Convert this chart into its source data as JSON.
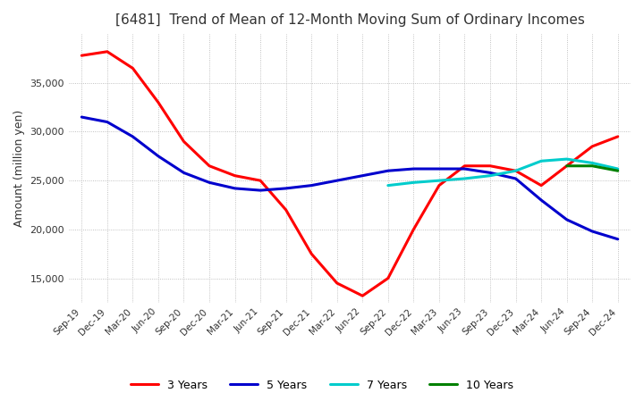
{
  "title": "[6481]  Trend of Mean of 12-Month Moving Sum of Ordinary Incomes",
  "ylabel": "Amount (million yen)",
  "line_colors": {
    "3 Years": "#ff0000",
    "5 Years": "#0000cd",
    "7 Years": "#00cccc",
    "10 Years": "#008000"
  },
  "x_labels": [
    "Sep-19",
    "Dec-19",
    "Mar-20",
    "Jun-20",
    "Sep-20",
    "Dec-20",
    "Mar-21",
    "Jun-21",
    "Sep-21",
    "Dec-21",
    "Mar-22",
    "Jun-22",
    "Sep-22",
    "Dec-22",
    "Mar-23",
    "Jun-23",
    "Sep-23",
    "Dec-23",
    "Mar-24",
    "Jun-24",
    "Sep-24",
    "Dec-24"
  ],
  "series": {
    "3 Years": [
      37800,
      38200,
      36500,
      33000,
      29000,
      26500,
      25500,
      25000,
      22000,
      17500,
      14500,
      13200,
      15000,
      20000,
      24500,
      26500,
      26500,
      26000,
      24500,
      26500,
      28500,
      29500
    ],
    "5 Years": [
      31500,
      31000,
      29500,
      27500,
      25800,
      24800,
      24200,
      24000,
      24200,
      24500,
      25000,
      25500,
      26000,
      26200,
      26200,
      26200,
      25800,
      25200,
      23000,
      21000,
      19800,
      19000
    ],
    "7 Years": [
      null,
      null,
      null,
      null,
      null,
      null,
      null,
      null,
      null,
      null,
      null,
      null,
      24500,
      24800,
      25000,
      25200,
      25500,
      26000,
      27000,
      27200,
      26800,
      26200
    ],
    "10 Years": [
      null,
      null,
      null,
      null,
      null,
      null,
      null,
      null,
      null,
      null,
      null,
      null,
      null,
      null,
      null,
      null,
      null,
      null,
      null,
      26500,
      26500,
      26000
    ]
  },
  "ylim": [
    12500,
    40000
  ],
  "yticks": [
    15000,
    20000,
    25000,
    30000,
    35000
  ],
  "background_color": "#ffffff",
  "grid_color": "#b0b0b0",
  "title_color": "#333333",
  "line_width": 2.2,
  "figsize": [
    7.2,
    4.4
  ],
  "dpi": 100
}
